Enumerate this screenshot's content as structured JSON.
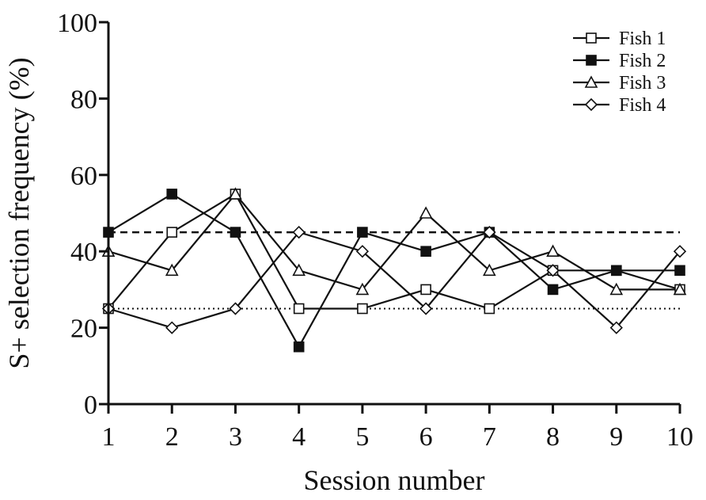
{
  "chart_data": {
    "type": "line",
    "title": "",
    "xlabel": "Session number",
    "ylabel": "S+ selection frequency  (%)",
    "x": [
      1,
      2,
      3,
      4,
      5,
      6,
      7,
      8,
      9,
      10
    ],
    "xticks": [
      "1",
      "2",
      "3",
      "4",
      "5",
      "6",
      "7",
      "8",
      "9",
      "10"
    ],
    "yticks": [
      "0",
      "20",
      "40",
      "60",
      "80",
      "100"
    ],
    "ylim": [
      0,
      100
    ],
    "xlim": [
      1,
      10
    ],
    "grid": false,
    "legend_position": "top-right",
    "series": [
      {
        "name": "Fish 1",
        "marker": "open-square",
        "values": [
          25,
          45,
          55,
          25,
          25,
          30,
          25,
          35,
          35,
          30
        ]
      },
      {
        "name": "Fish 2",
        "marker": "filled-square",
        "values": [
          45,
          55,
          45,
          15,
          45,
          40,
          45,
          30,
          35,
          35
        ]
      },
      {
        "name": "Fish 3",
        "marker": "open-triangle",
        "values": [
          40,
          35,
          55,
          35,
          30,
          50,
          35,
          40,
          30,
          30
        ]
      },
      {
        "name": "Fish 4",
        "marker": "open-diamond",
        "values": [
          25,
          20,
          25,
          45,
          40,
          25,
          45,
          35,
          20,
          40
        ]
      }
    ],
    "reference_lines": [
      {
        "y": 45,
        "style": "dashed"
      },
      {
        "y": 25,
        "style": "dotted"
      }
    ],
    "colors": {
      "line": "#111111",
      "background": "#ffffff"
    }
  }
}
